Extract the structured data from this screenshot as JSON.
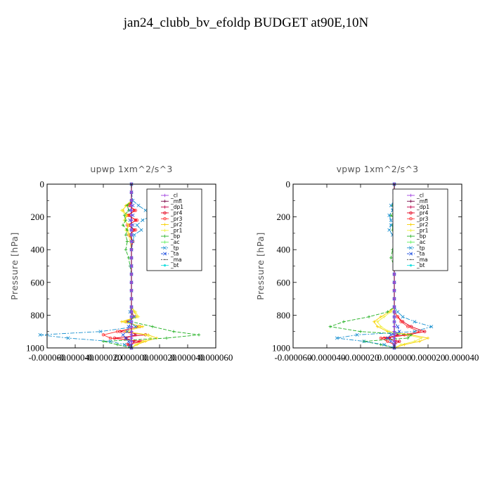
{
  "title": "jan24_clubb_bv_efoldp  BUDGET at90E,10N",
  "legend_entries": [
    "_cl",
    "_mfl",
    "_dp1",
    "_pr4",
    "_pr3",
    "_pr2",
    "_pr1",
    "_bp",
    "_ac",
    "_tp",
    "_ta",
    "_ma",
    "_bt"
  ],
  "series_colors": [
    "#a040e0",
    "#7a0e4a",
    "#c0004a",
    "#e4001c",
    "#ff3030",
    "#f8d000",
    "#f0f040",
    "#20b020",
    "#60f060",
    "#1890d0",
    "#2050e0",
    "#404040",
    "#20e0e0"
  ],
  "chart_data": [
    {
      "type": "line",
      "title": "upwp   1xm^2/s^3",
      "ylabel": "Pressure [hPa]",
      "xlim": [
        -6e-05,
        6e-05
      ],
      "ylim": [
        1000,
        0
      ],
      "y_inverted": true,
      "xticks": [
        -6e-05,
        -4e-05,
        -2e-05,
        0,
        2e-05,
        4e-05,
        6e-05
      ],
      "xtick_labels": [
        "-0.000060",
        "-0.000040",
        "-0.000020",
        "0.000000",
        "0.000020",
        "0.000040",
        "0.000060"
      ],
      "yticks": [
        0,
        200,
        400,
        600,
        800,
        1000
      ],
      "ytick_labels": [
        "0",
        "200",
        "400",
        "600",
        "800",
        "1000"
      ],
      "grid": false,
      "legend_position": "top-right",
      "levels": [
        0,
        50,
        100,
        130,
        160,
        190,
        220,
        250,
        280,
        310,
        350,
        400,
        450,
        500,
        550,
        600,
        650,
        700,
        750,
        780,
        810,
        840,
        870,
        900,
        920,
        940,
        960,
        980,
        1000
      ],
      "series": [
        {
          "name": "_cl",
          "values": [
            0,
            0,
            0,
            0,
            0,
            0,
            0,
            0,
            0,
            0,
            0,
            0,
            0,
            0,
            0,
            0,
            0,
            0,
            0,
            0,
            0,
            0,
            0,
            0,
            0,
            0,
            0,
            0,
            0
          ]
        },
        {
          "name": "_mfl",
          "values": [
            0,
            0,
            0,
            0,
            0,
            0,
            0,
            0,
            0,
            0,
            0,
            0,
            0,
            0,
            0,
            0,
            0,
            0,
            0,
            0,
            0,
            0,
            0,
            0,
            0,
            0,
            0,
            0,
            0
          ]
        },
        {
          "name": "_dp1",
          "values": [
            0,
            0,
            0,
            0,
            0,
            0,
            0,
            0,
            0,
            0,
            0,
            0,
            0,
            0,
            0,
            0,
            0,
            0,
            0,
            0,
            0,
            0,
            0,
            0,
            3e-06,
            -4e-06,
            2e-06,
            0,
            0
          ]
        },
        {
          "name": "_pr4",
          "values": [
            0,
            0,
            0,
            -1e-06,
            2e-06,
            -2e-06,
            3e-06,
            -2e-06,
            2e-06,
            -1e-06,
            1e-06,
            0,
            0,
            0,
            0,
            0,
            0,
            0,
            0,
            0,
            2e-06,
            -3e-06,
            5e-06,
            -8e-06,
            1e-05,
            -1.2e-05,
            6e-06,
            -2e-06,
            0
          ]
        },
        {
          "name": "_pr3",
          "values": [
            0,
            0,
            0,
            -2e-06,
            3e-06,
            -3e-06,
            4e-06,
            -3e-06,
            3e-06,
            -2e-06,
            1e-06,
            0,
            0,
            0,
            0,
            0,
            0,
            0,
            0,
            0,
            2e-06,
            -4e-06,
            6e-06,
            -1e-05,
            -2e-05,
            -1.5e-05,
            8e-06,
            -3e-06,
            0
          ]
        },
        {
          "name": "_pr2",
          "values": [
            0,
            0,
            0,
            -4e-06,
            -6e-06,
            -3e-06,
            -5e-06,
            -2e-06,
            -3e-06,
            -1e-06,
            0,
            0,
            0,
            0,
            0,
            0,
            0,
            0,
            0,
            2e-06,
            4e-06,
            -7e-06,
            8e-06,
            -4e-06,
            1.2e-05,
            1.8e-05,
            1e-05,
            4e-06,
            0
          ]
        },
        {
          "name": "_pr1",
          "values": [
            0,
            0,
            0,
            -3e-06,
            -7e-06,
            -4e-06,
            -5e-06,
            -2e-06,
            -4e-06,
            -2e-06,
            -1e-06,
            0,
            0,
            0,
            0,
            0,
            0,
            0,
            0,
            3e-06,
            5e-06,
            -5e-06,
            6e-06,
            -3e-06,
            1e-05,
            1.4e-05,
            8e-06,
            3e-06,
            0
          ]
        },
        {
          "name": "_bp",
          "values": [
            0,
            0,
            0,
            -3e-06,
            -2e-06,
            -5e-06,
            -4e-06,
            -6e-06,
            -3e-06,
            -4e-06,
            -3e-06,
            -4e-06,
            -2e-06,
            -1e-06,
            0,
            0,
            0,
            0,
            0,
            0,
            0,
            0,
            1.5e-05,
            3e-05,
            4.8e-05,
            2.5e-05,
            -2e-05,
            -1e-05,
            0
          ]
        },
        {
          "name": "_ac",
          "values": [
            0,
            0,
            0,
            0,
            0,
            0,
            0,
            0,
            0,
            0,
            0,
            0,
            0,
            0,
            0,
            0,
            0,
            0,
            0,
            0,
            0,
            0,
            0,
            0,
            0,
            0,
            0,
            0,
            0
          ]
        },
        {
          "name": "_tp",
          "values": [
            0,
            0,
            1e-06,
            5e-06,
            1e-05,
            1.5e-05,
            8e-06,
            4e-06,
            7e-06,
            2e-06,
            1e-06,
            0,
            0,
            0,
            0,
            0,
            0,
            0,
            0,
            -1e-06,
            2e-06,
            -2e-06,
            3e-06,
            -2.2e-05,
            -6.5e-05,
            -4.5e-05,
            -1.5e-05,
            -5e-06,
            0
          ]
        },
        {
          "name": "_ta",
          "values": [
            0,
            0,
            0,
            1e-06,
            -1e-06,
            1e-06,
            -1e-06,
            1e-06,
            0,
            0,
            0,
            0,
            0,
            0,
            0,
            0,
            0,
            0,
            0,
            0,
            0,
            0,
            -2e-06,
            -3e-06,
            -6e-06,
            -4e-06,
            -2e-06,
            -1e-06,
            0
          ]
        },
        {
          "name": "_ma",
          "values": [
            0,
            0,
            0,
            0,
            0,
            0,
            0,
            0,
            0,
            0,
            0,
            0,
            0,
            0,
            0,
            0,
            0,
            0,
            0,
            0,
            0,
            0,
            0,
            0,
            0,
            0,
            0,
            0,
            0
          ]
        },
        {
          "name": "_bt",
          "values": [
            0,
            0,
            0,
            0,
            0,
            0,
            0,
            0,
            0,
            0,
            0,
            0,
            0,
            0,
            0,
            0,
            0,
            0,
            0,
            0,
            0,
            0,
            0,
            0,
            0,
            0,
            0,
            0,
            0
          ]
        }
      ]
    },
    {
      "type": "line",
      "title": "vpwp   1xm^2/s^3",
      "ylabel": "Pressure [hPa]",
      "xlim": [
        -6e-05,
        4e-05
      ],
      "ylim": [
        1000,
        0
      ],
      "y_inverted": true,
      "xticks": [
        -6e-05,
        -4e-05,
        -2e-05,
        0,
        2e-05,
        4e-05
      ],
      "xtick_labels": [
        "-0.000060",
        "-0.000040",
        "-0.000020",
        "0.000000",
        "0.000020",
        "0.000040"
      ],
      "yticks": [
        0,
        200,
        400,
        600,
        800,
        1000
      ],
      "ytick_labels": [
        "0",
        "200",
        "400",
        "600",
        "800",
        "1000"
      ],
      "grid": false,
      "legend_position": "top-right",
      "levels": [
        0,
        50,
        100,
        130,
        160,
        190,
        220,
        250,
        280,
        310,
        350,
        400,
        450,
        500,
        550,
        600,
        650,
        700,
        750,
        780,
        810,
        840,
        870,
        900,
        920,
        940,
        960,
        980,
        1000
      ],
      "series": [
        {
          "name": "_cl",
          "values": [
            0,
            0,
            0,
            0,
            0,
            0,
            0,
            0,
            0,
            0,
            0,
            0,
            0,
            0,
            0,
            0,
            0,
            0,
            0,
            0,
            0,
            0,
            0,
            0,
            0,
            0,
            0,
            0,
            0
          ]
        },
        {
          "name": "_mfl",
          "values": [
            0,
            0,
            0,
            0,
            0,
            0,
            0,
            0,
            0,
            0,
            0,
            0,
            0,
            0,
            0,
            0,
            0,
            0,
            0,
            0,
            0,
            0,
            0,
            0,
            0,
            0,
            0,
            0,
            0
          ]
        },
        {
          "name": "_dp1",
          "values": [
            0,
            0,
            0,
            0,
            0,
            0,
            0,
            0,
            0,
            0,
            0,
            0,
            0,
            0,
            0,
            0,
            0,
            0,
            0,
            0,
            0,
            0,
            0,
            0,
            2e-06,
            -3e-06,
            1e-06,
            0,
            0
          ]
        },
        {
          "name": "_pr4",
          "values": [
            0,
            0,
            0,
            0,
            1e-06,
            0,
            1e-06,
            0,
            1e-06,
            0,
            0,
            0,
            0,
            0,
            0,
            0,
            0,
            0,
            0,
            0,
            2e-06,
            5e-06,
            1e-05,
            1.8e-05,
            8e-06,
            -6e-06,
            3e-06,
            0,
            0
          ]
        },
        {
          "name": "_pr3",
          "values": [
            0,
            0,
            0,
            0,
            1e-06,
            0,
            1e-06,
            0,
            0,
            0,
            0,
            0,
            0,
            0,
            0,
            0,
            0,
            0,
            0,
            0,
            2e-06,
            4e-06,
            8e-06,
            1.5e-05,
            6e-06,
            -8e-06,
            -4e-06,
            0,
            0
          ]
        },
        {
          "name": "_pr2",
          "values": [
            0,
            0,
            0,
            0,
            2e-06,
            0,
            2e-06,
            1e-06,
            0,
            0,
            0,
            0,
            0,
            0,
            0,
            0,
            0,
            0,
            0,
            -3e-06,
            -8e-06,
            -1.2e-05,
            -1e-05,
            -4e-06,
            1e-05,
            2e-05,
            1.5e-05,
            6e-06,
            0
          ]
        },
        {
          "name": "_pr1",
          "values": [
            0,
            0,
            0,
            0,
            1e-06,
            0,
            1e-06,
            0,
            0,
            0,
            0,
            0,
            0,
            0,
            0,
            0,
            0,
            0,
            0,
            -2e-06,
            -6e-06,
            -1e-05,
            -8e-06,
            -3e-06,
            8e-06,
            1.6e-05,
            1.2e-05,
            4e-06,
            0
          ]
        },
        {
          "name": "_bp",
          "values": [
            0,
            0,
            0,
            -1e-06,
            1e-06,
            -2e-06,
            1e-06,
            -1e-06,
            -1e-06,
            0,
            0,
            -1e-06,
            -2e-06,
            0,
            0,
            0,
            0,
            0,
            0,
            -4e-06,
            -1.5e-05,
            -3e-05,
            -3.8e-05,
            -2e-05,
            1e-05,
            8e-06,
            -1.8e-05,
            -8e-06,
            0
          ]
        },
        {
          "name": "_ac",
          "values": [
            0,
            0,
            0,
            0,
            0,
            0,
            0,
            0,
            0,
            0,
            0,
            0,
            0,
            0,
            0,
            0,
            0,
            0,
            0,
            0,
            0,
            0,
            0,
            0,
            0,
            0,
            0,
            0,
            0
          ]
        },
        {
          "name": "_tp",
          "values": [
            0,
            0,
            0,
            -2e-06,
            -1e-06,
            -3e-06,
            -2e-06,
            -2e-06,
            -3e-06,
            -1e-06,
            0,
            0,
            0,
            0,
            0,
            0,
            0,
            0,
            0,
            2e-06,
            5e-06,
            1.2e-05,
            2.2e-05,
            1.2e-05,
            -2.2e-05,
            -3.4e-05,
            -1.8e-05,
            -6e-06,
            0
          ]
        },
        {
          "name": "_ta",
          "values": [
            0,
            0,
            0,
            0,
            0,
            0,
            0,
            0,
            0,
            0,
            0,
            0,
            0,
            0,
            0,
            0,
            0,
            0,
            0,
            0,
            0,
            0,
            2e-06,
            3e-06,
            -2e-06,
            -4e-06,
            -2e-06,
            0,
            0
          ]
        },
        {
          "name": "_ma",
          "values": [
            0,
            0,
            0,
            0,
            0,
            0,
            0,
            0,
            0,
            0,
            0,
            0,
            0,
            0,
            0,
            0,
            0,
            0,
            0,
            0,
            0,
            0,
            0,
            0,
            0,
            0,
            0,
            0,
            0
          ]
        },
        {
          "name": "_bt",
          "values": [
            0,
            0,
            0,
            0,
            0,
            0,
            0,
            0,
            0,
            0,
            0,
            0,
            0,
            0,
            0,
            0,
            0,
            0,
            0,
            0,
            0,
            0,
            0,
            0,
            0,
            0,
            0,
            0,
            0
          ]
        }
      ]
    }
  ]
}
